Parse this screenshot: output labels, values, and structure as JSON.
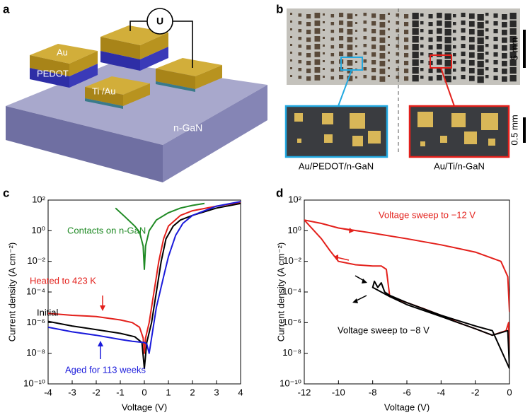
{
  "panel_labels": [
    "a",
    "b",
    "c",
    "d"
  ],
  "diagram": {
    "labels": [
      "Au",
      "PEDOT",
      "Ti /Au",
      "n-GaN",
      "U"
    ]
  },
  "photo": {
    "scale_bars": [
      "5 mm",
      "0.5 mm"
    ],
    "captions": [
      "Au/PEDOT/n-GaN",
      "Au/Ti/n-GaN"
    ]
  },
  "chart_data": [
    {
      "type": "line",
      "log_y": true,
      "xlabel": "Voltage (V)",
      "ylabel": "Current density (A cm⁻²)",
      "xlim": [
        -4,
        4
      ],
      "xticks": [
        -4,
        -3,
        -2,
        -1,
        0,
        1,
        2,
        3,
        4
      ],
      "ylim": [
        1e-10,
        100
      ],
      "yticks": [
        {
          "value": 1e-10,
          "label": "10⁻¹⁰"
        },
        {
          "value": 1e-08,
          "label": "10⁻⁸"
        },
        {
          "value": 1e-06,
          "label": "10⁻⁶"
        },
        {
          "value": 0.0001,
          "label": "10⁻⁴"
        },
        {
          "value": 0.01,
          "label": "10⁻²"
        },
        {
          "value": 1,
          "label": "10⁰"
        },
        {
          "value": 100,
          "label": "10²"
        }
      ],
      "series": [
        {
          "name": "Contacts on n-GaN",
          "color": "#1f8a24",
          "x": [
            -1.2,
            -0.8,
            -0.4,
            -0.2,
            -0.05,
            0,
            0.05,
            0.2,
            0.5,
            1,
            1.5,
            2,
            2.5
          ],
          "values": [
            30,
            8,
            2,
            0.8,
            0.1,
            0.003,
            0.1,
            1,
            5,
            15,
            30,
            45,
            60
          ]
        },
        {
          "name": "Heated to 423 K",
          "color": "#e3201b",
          "x": [
            -4,
            -3,
            -2,
            -1,
            -0.5,
            -0.2,
            -0.05,
            0,
            0.05,
            0.2,
            0.4,
            0.6,
            0.8,
            1,
            1.5,
            2,
            3,
            4
          ],
          "values": [
            4e-06,
            3e-06,
            2.5e-06,
            1.5e-06,
            1e-06,
            5e-07,
            1e-07,
            1e-08,
            1e-07,
            1e-06,
            0.0001,
            0.01,
            0.3,
            2,
            10,
            20,
            40,
            70
          ]
        },
        {
          "name": "Initial",
          "color": "#000000",
          "x": [
            -4,
            -3,
            -2,
            -1,
            -0.4,
            -0.1,
            0,
            0.1,
            0.3,
            0.5,
            0.7,
            0.9,
            1.2,
            1.5,
            2,
            3,
            4
          ],
          "values": [
            1.2e-06,
            6e-07,
            3.5e-07,
            2e-07,
            1.2e-07,
            5e-08,
            1e-09,
            5e-08,
            1e-06,
            0.0001,
            0.01,
            0.3,
            2,
            5,
            10,
            30,
            60
          ]
        },
        {
          "name": "Aged for 113 weeks",
          "color": "#1a1adb",
          "x": [
            -4,
            -3,
            -2,
            -1,
            -0.5,
            0,
            0.1,
            0.2,
            0.3,
            0.5,
            0.8,
            1,
            1.3,
            1.6,
            2,
            3,
            4
          ],
          "values": [
            5e-07,
            2.5e-07,
            1.5e-07,
            8e-08,
            6e-08,
            5e-08,
            4e-08,
            1e-08,
            1e-07,
            1e-05,
            0.001,
            0.02,
            0.5,
            3,
            10,
            40,
            80
          ]
        }
      ]
    },
    {
      "type": "line",
      "log_y": true,
      "xlabel": "Voltage (V)",
      "ylabel": "Current density (A cm⁻²)",
      "xlim": [
        -12,
        0
      ],
      "xticks": [
        -12,
        -10,
        -8,
        -6,
        -4,
        -2,
        0
      ],
      "ylim": [
        1e-10,
        100
      ],
      "yticks": [
        {
          "value": 1e-10,
          "label": "10⁻¹⁰"
        },
        {
          "value": 1e-08,
          "label": "10⁻⁸"
        },
        {
          "value": 1e-06,
          "label": "10⁻⁶"
        },
        {
          "value": 0.0001,
          "label": "10⁻⁴"
        },
        {
          "value": 0.01,
          "label": "10⁻²"
        },
        {
          "value": 1,
          "label": "10⁰"
        },
        {
          "value": 100,
          "label": "10²"
        }
      ],
      "series": [
        {
          "name": "Voltage sweep to −12 V",
          "color": "#e3201b",
          "x": [
            0,
            -0.05,
            -0.2,
            -1,
            -2,
            -3,
            -4,
            -5,
            -6,
            -7,
            -7.2,
            -7.5,
            -8,
            -9,
            -10,
            -10.5,
            -11,
            -12,
            -11,
            -10,
            -8,
            -6,
            -4,
            -2,
            -0.5,
            -0.1,
            0
          ],
          "values": [
            1e-09,
            1e-06,
            3e-07,
            1.5e-07,
            4e-07,
            1e-06,
            3e-06,
            8e-06,
            2e-05,
            5e-05,
            0.003,
            0.005,
            0.005,
            0.006,
            0.01,
            0.05,
            0.3,
            5,
            3,
            1.5,
            0.7,
            0.3,
            0.12,
            0.04,
            0.01,
            0.001,
            5e-06
          ]
        },
        {
          "name": "Voltage sweep to −8 V",
          "color": "#000000",
          "x": [
            0,
            -0.1,
            -1,
            -2,
            -4,
            -6,
            -7,
            -8,
            -7.9,
            -7.7,
            -7.5,
            -7.3,
            -7,
            -6,
            -4,
            -2,
            -1,
            0
          ],
          "values": [
            1e-09,
            3e-07,
            1.5e-07,
            4e-07,
            2.5e-06,
            1.5e-05,
            5e-05,
            0.0002,
            0.0005,
            0.0002,
            0.0004,
            0.0001,
            6e-05,
            2e-05,
            3e-06,
            6e-07,
            3e-07,
            1e-09
          ]
        }
      ]
    }
  ]
}
